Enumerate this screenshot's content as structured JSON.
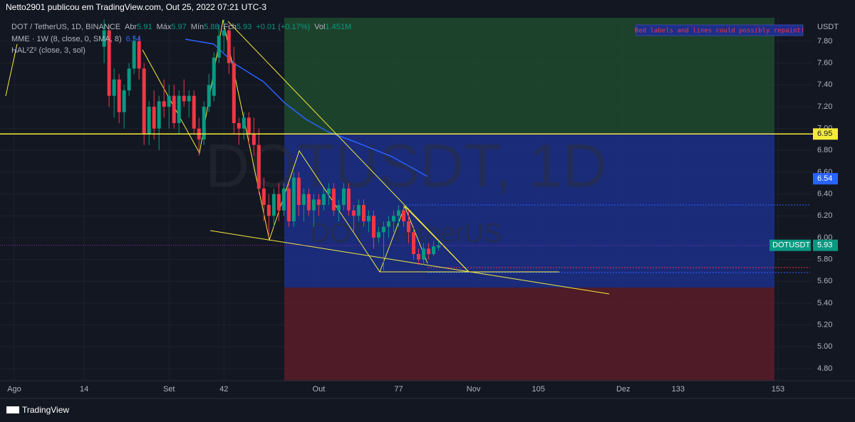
{
  "header": {
    "text": "Netto2901 publicou em TradingView.com, Out 25, 2022 07:21 UTC-3"
  },
  "footer": {
    "brand": "TradingView"
  },
  "legend": {
    "symbol": "DOT / TetherUS, 1D, BINANCE",
    "open_label": "Abr",
    "open": 5.91,
    "high_label": "Máx",
    "high": 5.97,
    "low_label": "Mín",
    "low": 5.88,
    "close_label": "Fch",
    "close": 5.93,
    "change": "+0.01 (+0.17%)",
    "volume_label": "Vol",
    "volume": "1.451M",
    "indicator1": "MME · 1W (8, close, 0, SMA, 8)",
    "indicator1_value": 6.54,
    "indicator2": "HAL²Z² (close, 3, sol)"
  },
  "note": "Red labels and lines could possibly repaint!",
  "watermark": {
    "main": "DOTUSDT, 1D",
    "sub": "DOT / TetherUS"
  },
  "chart_data": {
    "type": "candlestick",
    "y_unit": "USDT",
    "xlim": [
      -2.857,
      160
    ],
    "ylim": [
      4.689,
      8.015
    ],
    "xticks": [
      {
        "value": 0,
        "label": "Ago"
      },
      14,
      {
        "value": 31,
        "label": "Set"
      },
      42,
      {
        "value": 61,
        "label": "Out"
      },
      77,
      {
        "value": 92,
        "label": "Nov"
      },
      105,
      {
        "value": 122,
        "label": "Dez"
      },
      133,
      153
    ],
    "yticks": [
      {
        "value": 4.8,
        "label": "4.80"
      },
      {
        "value": 5.0,
        "label": "5.00"
      },
      {
        "value": 5.2,
        "label": "5.20"
      },
      {
        "value": 5.4,
        "label": "5.40"
      },
      {
        "value": 5.6,
        "label": "5.60"
      },
      {
        "value": 5.8,
        "label": "5.80"
      },
      {
        "value": 6.0,
        "label": "6.00"
      },
      {
        "value": 6.2,
        "label": "6.20"
      },
      {
        "value": 6.4,
        "label": "6.40"
      },
      {
        "value": 6.6,
        "label": "6.60"
      },
      {
        "value": 6.8,
        "label": "6.80"
      },
      {
        "value": 7.0,
        "label": "7.00"
      },
      {
        "value": 7.2,
        "label": "7.20"
      },
      {
        "value": 7.4,
        "label": "7.40"
      },
      {
        "value": 7.6,
        "label": "7.60"
      },
      {
        "value": 7.8,
        "label": "7.80"
      }
    ],
    "up_color": "#089981",
    "down_color": "#f23645",
    "x": [
      18,
      19,
      20,
      21,
      22,
      23,
      24,
      25,
      26,
      27,
      28,
      29,
      30,
      31,
      32,
      33,
      34,
      35,
      36,
      37,
      38,
      39,
      40,
      41,
      42,
      43,
      44,
      45,
      46,
      47,
      48,
      49,
      50,
      51,
      52,
      53,
      54,
      55,
      56,
      57,
      58,
      59,
      60,
      61,
      62,
      63,
      64,
      65,
      66,
      67,
      68,
      69,
      70,
      71,
      72,
      73,
      74,
      75,
      76,
      77,
      78,
      79,
      80,
      81,
      82,
      83,
      84,
      85
    ],
    "open": [
      7.75,
      7.9,
      7.3,
      7.45,
      7.15,
      7.35,
      7.55,
      7.8,
      7.55,
      6.95,
      7.2,
      7.0,
      7.25,
      7.2,
      7.3,
      7.05,
      7.3,
      7.25,
      7.3,
      7.0,
      6.9,
      7.2,
      7.3,
      7.65,
      7.85,
      7.9,
      7.6,
      7.05,
      7.0,
      7.1,
      6.95,
      6.85,
      6.45,
      6.3,
      6.2,
      6.4,
      6.25,
      6.45,
      6.15,
      6.55,
      6.3,
      6.4,
      6.25,
      6.35,
      6.3,
      6.4,
      6.45,
      6.25,
      6.3,
      6.45,
      6.25,
      6.2,
      6.3,
      6.15,
      6.2,
      6.0,
      6.05,
      6.1,
      6.15,
      6.2,
      6.25,
      6.15,
      6.05,
      5.85,
      5.8,
      5.9,
      5.85,
      5.91
    ],
    "high": [
      8.0,
      7.95,
      7.55,
      7.5,
      7.4,
      7.6,
      7.85,
      7.85,
      7.6,
      7.25,
      7.35,
      7.3,
      7.45,
      7.4,
      7.4,
      7.35,
      7.45,
      7.35,
      7.35,
      7.1,
      7.25,
      7.5,
      7.7,
      7.95,
      8.0,
      7.95,
      7.75,
      7.1,
      7.15,
      7.15,
      7.1,
      7.0,
      6.55,
      6.4,
      6.45,
      6.5,
      6.5,
      6.5,
      6.6,
      6.6,
      6.45,
      6.45,
      6.4,
      6.4,
      6.45,
      6.5,
      6.5,
      6.35,
      6.5,
      6.5,
      6.3,
      6.35,
      6.35,
      6.25,
      6.25,
      6.1,
      6.15,
      6.2,
      6.25,
      6.3,
      6.3,
      6.25,
      6.1,
      5.9,
      5.95,
      5.95,
      5.97,
      5.97
    ],
    "low": [
      7.6,
      7.2,
      7.1,
      7.05,
      7.0,
      7.3,
      7.5,
      7.45,
      6.85,
      6.85,
      6.9,
      6.8,
      7.1,
      7.0,
      7.0,
      6.95,
      7.2,
      7.1,
      6.95,
      6.75,
      6.85,
      7.15,
      7.25,
      7.6,
      7.7,
      7.5,
      6.95,
      6.85,
      6.9,
      6.85,
      6.75,
      6.4,
      6.15,
      6.0,
      6.1,
      6.15,
      6.2,
      6.1,
      6.1,
      6.2,
      6.15,
      6.2,
      6.1,
      6.2,
      6.25,
      6.3,
      6.2,
      6.15,
      6.25,
      6.2,
      6.05,
      6.15,
      6.1,
      6.05,
      5.9,
      5.95,
      5.7,
      6.0,
      6.05,
      6.1,
      6.1,
      5.95,
      5.8,
      5.75,
      5.75,
      5.8,
      5.83,
      5.88
    ],
    "close": [
      7.9,
      7.3,
      7.45,
      7.15,
      7.35,
      7.55,
      7.8,
      7.55,
      6.95,
      7.2,
      7.0,
      7.25,
      7.2,
      7.3,
      7.05,
      7.3,
      7.25,
      7.3,
      7.0,
      6.9,
      7.2,
      7.4,
      7.65,
      7.85,
      7.9,
      7.6,
      7.05,
      7.0,
      7.1,
      6.95,
      6.85,
      6.45,
      6.3,
      6.2,
      6.4,
      6.25,
      6.45,
      6.15,
      6.55,
      6.3,
      6.4,
      6.25,
      6.35,
      6.3,
      6.4,
      6.45,
      6.25,
      6.3,
      6.45,
      6.25,
      6.2,
      6.3,
      6.15,
      6.2,
      6.0,
      6.05,
      6.1,
      6.15,
      6.2,
      6.25,
      6.15,
      6.05,
      5.85,
      5.8,
      5.9,
      5.85,
      5.92,
      5.93
    ],
    "price_tags": [
      {
        "value": 6.95,
        "color": "#f5eb3a"
      },
      {
        "value": 6.54,
        "color": "#2962ff"
      },
      {
        "name": "DOTUSDT",
        "value": 5.93,
        "color": "#089981"
      }
    ]
  }
}
